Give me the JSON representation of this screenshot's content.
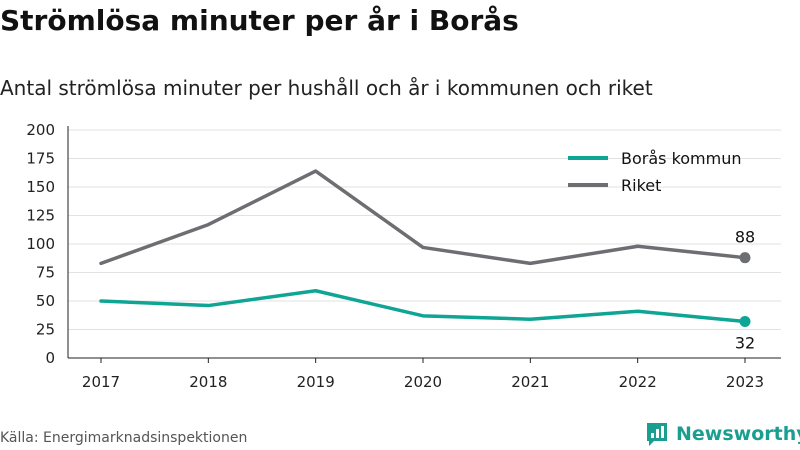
{
  "title": "Strömlösa minuter per år i Borås",
  "subtitle": "Antal strömlösa minuter per hushåll och år i kommunen och riket",
  "source": "Källa: Energimarknadsinspektionen",
  "brand": {
    "name": "Newsworthy",
    "icon": "newsworthy-logo-icon",
    "color": "#1a9e8f"
  },
  "chart_data": {
    "type": "line",
    "x": [
      "2017",
      "2018",
      "2019",
      "2020",
      "2021",
      "2022",
      "2023"
    ],
    "series": [
      {
        "name": "Borås kommun",
        "color": "#0fa595",
        "values": [
          50,
          46,
          59,
          37,
          34,
          41,
          32
        ],
        "end_label": "32"
      },
      {
        "name": "Riket",
        "color": "#6d6e71",
        "values": [
          83,
          117,
          164,
          97,
          83,
          98,
          88
        ],
        "end_label": "88"
      }
    ],
    "ylim": [
      0,
      200
    ],
    "yticks": [
      "0",
      "25",
      "50",
      "75",
      "100",
      "125",
      "150",
      "175",
      "200"
    ],
    "grid": true,
    "legend": "top-right"
  }
}
